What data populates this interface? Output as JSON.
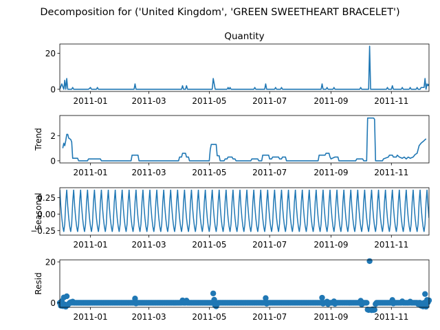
{
  "figure": {
    "suptitle": "Decomposition for ('United Kingdom', 'GREEN SWEETHEART BRACELET')"
  },
  "colors": {
    "line": "#1f77b4",
    "axis": "#000000",
    "background": "#ffffff"
  },
  "chart_data": [
    {
      "type": "line",
      "title": "Quantity",
      "ylabel": "",
      "ylim": [
        -1.2,
        25.2
      ],
      "yticks": [
        0,
        20
      ],
      "xlim": [
        "2010-12-01",
        "2011-12-09"
      ],
      "xticks": [
        "2011-01",
        "2011-03",
        "2011-05",
        "2011-07",
        "2011-09",
        "2011-11"
      ],
      "grid": false,
      "points": [
        [
          "2010-12-01",
          0
        ],
        [
          "2010-12-03",
          3
        ],
        [
          "2010-12-05",
          0
        ],
        [
          "2010-12-06",
          5
        ],
        [
          "2010-12-07",
          0
        ],
        [
          "2010-12-08",
          6
        ],
        [
          "2010-12-09",
          0
        ],
        [
          "2010-12-13",
          0
        ],
        [
          "2010-12-14",
          1
        ],
        [
          "2010-12-15",
          0
        ],
        [
          "2010-12-30",
          0
        ],
        [
          "2011-01-01",
          1
        ],
        [
          "2011-01-02",
          0
        ],
        [
          "2011-01-07",
          0
        ],
        [
          "2011-01-08",
          1
        ],
        [
          "2011-01-09",
          0
        ],
        [
          "2011-02-14",
          0
        ],
        [
          "2011-02-15",
          3
        ],
        [
          "2011-02-16",
          0
        ],
        [
          "2011-04-03",
          0
        ],
        [
          "2011-04-04",
          2
        ],
        [
          "2011-04-05",
          0
        ],
        [
          "2011-04-07",
          0
        ],
        [
          "2011-04-08",
          2
        ],
        [
          "2011-04-09",
          0
        ],
        [
          "2011-05-04",
          0
        ],
        [
          "2011-05-05",
          6
        ],
        [
          "2011-05-06",
          3
        ],
        [
          "2011-05-07",
          0
        ],
        [
          "2011-05-08",
          0
        ],
        [
          "2011-05-19",
          0
        ],
        [
          "2011-05-20",
          1
        ],
        [
          "2011-05-21",
          0
        ],
        [
          "2011-05-22",
          1
        ],
        [
          "2011-05-23",
          0
        ],
        [
          "2011-06-15",
          0
        ],
        [
          "2011-06-16",
          1
        ],
        [
          "2011-06-17",
          0
        ],
        [
          "2011-06-26",
          0
        ],
        [
          "2011-06-27",
          3
        ],
        [
          "2011-06-28",
          0
        ],
        [
          "2011-07-06",
          0
        ],
        [
          "2011-07-07",
          1
        ],
        [
          "2011-07-08",
          0
        ],
        [
          "2011-07-12",
          0
        ],
        [
          "2011-07-13",
          1
        ],
        [
          "2011-07-14",
          0
        ],
        [
          "2011-08-22",
          0
        ],
        [
          "2011-08-23",
          3
        ],
        [
          "2011-08-24",
          0
        ],
        [
          "2011-08-27",
          0
        ],
        [
          "2011-08-28",
          1
        ],
        [
          "2011-08-29",
          0
        ],
        [
          "2011-09-03",
          0
        ],
        [
          "2011-09-04",
          1
        ],
        [
          "2011-09-05",
          0
        ],
        [
          "2011-09-30",
          0
        ],
        [
          "2011-10-01",
          1
        ],
        [
          "2011-10-02",
          0
        ],
        [
          "2011-10-09",
          0
        ],
        [
          "2011-10-10",
          24
        ],
        [
          "2011-10-11",
          0
        ],
        [
          "2011-10-27",
          0
        ],
        [
          "2011-10-28",
          1
        ],
        [
          "2011-10-29",
          0
        ],
        [
          "2011-11-01",
          0
        ],
        [
          "2011-11-02",
          2
        ],
        [
          "2011-11-03",
          0
        ],
        [
          "2011-11-11",
          0
        ],
        [
          "2011-11-12",
          1
        ],
        [
          "2011-11-13",
          0
        ],
        [
          "2011-11-19",
          0
        ],
        [
          "2011-11-20",
          1
        ],
        [
          "2011-11-21",
          0
        ],
        [
          "2011-11-26",
          0
        ],
        [
          "2011-11-27",
          1
        ],
        [
          "2011-11-28",
          0
        ],
        [
          "2011-11-30",
          0
        ],
        [
          "2011-12-01",
          1
        ],
        [
          "2011-12-04",
          1
        ],
        [
          "2011-12-05",
          6
        ],
        [
          "2011-12-06",
          0
        ],
        [
          "2011-12-07",
          3
        ],
        [
          "2011-12-08",
          2
        ],
        [
          "2011-12-09",
          3
        ]
      ]
    },
    {
      "type": "line",
      "title": "",
      "ylabel": "Trend",
      "ylim": [
        -0.17,
        3.6
      ],
      "yticks": [
        0,
        2
      ],
      "xlim": [
        "2010-12-01",
        "2011-12-09"
      ],
      "xticks": [
        "2011-01",
        "2011-03",
        "2011-05",
        "2011-07",
        "2011-09",
        "2011-11"
      ],
      "grid": false,
      "points": [
        [
          "2010-12-04",
          1.0
        ],
        [
          "2010-12-05",
          1.4
        ],
        [
          "2010-12-06",
          1.2
        ],
        [
          "2010-12-07",
          1.6
        ],
        [
          "2010-12-08",
          2.1
        ],
        [
          "2010-12-09",
          2.1
        ],
        [
          "2010-12-10",
          1.8
        ],
        [
          "2010-12-12",
          1.7
        ],
        [
          "2010-12-13",
          1.5
        ],
        [
          "2010-12-14",
          0.2
        ],
        [
          "2010-12-15",
          0.2
        ],
        [
          "2010-12-19",
          0.2
        ],
        [
          "2010-12-20",
          0.0
        ],
        [
          "2010-12-29",
          0.0
        ],
        [
          "2010-12-30",
          0.15
        ],
        [
          "2011-01-11",
          0.15
        ],
        [
          "2011-01-12",
          0.0
        ],
        [
          "2011-02-11",
          0.0
        ],
        [
          "2011-02-12",
          0.45
        ],
        [
          "2011-02-18",
          0.45
        ],
        [
          "2011-02-19",
          0.0
        ],
        [
          "2011-03-31",
          0.0
        ],
        [
          "2011-04-01",
          0.3
        ],
        [
          "2011-04-03",
          0.3
        ],
        [
          "2011-04-04",
          0.6
        ],
        [
          "2011-04-07",
          0.6
        ],
        [
          "2011-04-08",
          0.3
        ],
        [
          "2011-04-10",
          0.3
        ],
        [
          "2011-04-11",
          0.0
        ],
        [
          "2011-05-01",
          0.0
        ],
        [
          "2011-05-02",
          0.9
        ],
        [
          "2011-05-03",
          1.3
        ],
        [
          "2011-05-08",
          1.3
        ],
        [
          "2011-05-09",
          0.4
        ],
        [
          "2011-05-11",
          0.4
        ],
        [
          "2011-05-12",
          0.0
        ],
        [
          "2011-05-16",
          0.0
        ],
        [
          "2011-05-17",
          0.15
        ],
        [
          "2011-05-19",
          0.15
        ],
        [
          "2011-05-20",
          0.3
        ],
        [
          "2011-05-24",
          0.3
        ],
        [
          "2011-05-25",
          0.15
        ],
        [
          "2011-05-27",
          0.15
        ],
        [
          "2011-05-28",
          0.0
        ],
        [
          "2011-06-12",
          0.0
        ],
        [
          "2011-06-13",
          0.15
        ],
        [
          "2011-06-19",
          0.15
        ],
        [
          "2011-06-20",
          0.0
        ],
        [
          "2011-06-23",
          0.0
        ],
        [
          "2011-06-24",
          0.45
        ],
        [
          "2011-06-30",
          0.45
        ],
        [
          "2011-07-01",
          0.15
        ],
        [
          "2011-07-03",
          0.15
        ],
        [
          "2011-07-04",
          0.3
        ],
        [
          "2011-07-10",
          0.3
        ],
        [
          "2011-07-11",
          0.15
        ],
        [
          "2011-07-13",
          0.15
        ],
        [
          "2011-07-14",
          0.3
        ],
        [
          "2011-07-17",
          0.3
        ],
        [
          "2011-07-18",
          0.0
        ],
        [
          "2011-08-19",
          0.0
        ],
        [
          "2011-08-20",
          0.45
        ],
        [
          "2011-08-26",
          0.45
        ],
        [
          "2011-08-27",
          0.6
        ],
        [
          "2011-08-30",
          0.6
        ],
        [
          "2011-08-31",
          0.3
        ],
        [
          "2011-09-01",
          0.15
        ],
        [
          "2011-09-05",
          0.3
        ],
        [
          "2011-09-08",
          0.3
        ],
        [
          "2011-09-09",
          0.0
        ],
        [
          "2011-09-26",
          0.0
        ],
        [
          "2011-09-27",
          0.15
        ],
        [
          "2011-10-03",
          0.15
        ],
        [
          "2011-10-04",
          0.0
        ],
        [
          "2011-10-07",
          0.0
        ],
        [
          "2011-10-08",
          3.4
        ],
        [
          "2011-10-14",
          3.4
        ],
        [
          "2011-10-15",
          3.3
        ],
        [
          "2011-10-16",
          0.0
        ],
        [
          "2011-10-23",
          0.0
        ],
        [
          "2011-10-24",
          0.15
        ],
        [
          "2011-10-29",
          0.3
        ],
        [
          "2011-10-30",
          0.45
        ],
        [
          "2011-11-02",
          0.45
        ],
        [
          "2011-11-03",
          0.3
        ],
        [
          "2011-11-06",
          0.3
        ],
        [
          "2011-11-07",
          0.45
        ],
        [
          "2011-11-09",
          0.3
        ],
        [
          "2011-11-12",
          0.2
        ],
        [
          "2011-11-14",
          0.3
        ],
        [
          "2011-11-16",
          0.15
        ],
        [
          "2011-11-18",
          0.3
        ],
        [
          "2011-11-20",
          0.2
        ],
        [
          "2011-11-23",
          0.3
        ],
        [
          "2011-11-25",
          0.5
        ],
        [
          "2011-11-27",
          0.6
        ],
        [
          "2011-11-29",
          1.2
        ],
        [
          "2011-12-01",
          1.4
        ],
        [
          "2011-12-04",
          1.6
        ],
        [
          "2011-12-06",
          1.75
        ]
      ]
    },
    {
      "type": "line",
      "title": "",
      "ylabel": "Seasonal",
      "ylim": [
        -0.32,
        0.4
      ],
      "yticks": [
        0.25,
        0.0,
        -0.25
      ],
      "ytick_labels": [
        "0.25",
        "0.00",
        "−0.25"
      ],
      "xlim": [
        "2010-12-01",
        "2011-12-09"
      ],
      "xticks": [
        "2011-01",
        "2011-03",
        "2011-05",
        "2011-07",
        "2011-09",
        "2011-11"
      ],
      "grid": false,
      "period_days": 7,
      "pattern": [
        0.37,
        0.12,
        -0.06,
        -0.19,
        -0.27,
        -0.15,
        0.18
      ]
    },
    {
      "type": "scatter",
      "title": "",
      "ylabel": "Resid",
      "ylim": [
        -2.2,
        21.0
      ],
      "yticks": [
        0,
        20
      ],
      "xlim": [
        "2010-12-01",
        "2011-12-09"
      ],
      "xticks": [
        "2011-01",
        "2011-03",
        "2011-05",
        "2011-07",
        "2011-09",
        "2011-11"
      ],
      "grid": false,
      "baseline": 0,
      "baseline_points": [
        [
          "2010-12-02",
          -1.4
        ],
        [
          "2010-12-03",
          0.8
        ],
        [
          "2010-12-04",
          -1.6
        ],
        [
          "2010-12-05",
          2.6
        ],
        [
          "2010-12-06",
          -0.8
        ],
        [
          "2010-12-07",
          -1.9
        ],
        [
          "2010-12-08",
          3.2
        ],
        [
          "2010-12-09",
          -1.1
        ],
        [
          "2010-12-10",
          -0.5
        ],
        [
          "2010-12-12",
          0.3
        ],
        [
          "2010-12-14",
          0.6
        ],
        [
          "2011-02-15",
          2.1
        ],
        [
          "2011-02-16",
          -0.3
        ],
        [
          "2011-04-04",
          1.2
        ],
        [
          "2011-04-08",
          1.1
        ],
        [
          "2011-05-05",
          4.6
        ],
        [
          "2011-05-06",
          1.5
        ],
        [
          "2011-05-07",
          -1.3
        ],
        [
          "2011-05-08",
          -1.7
        ],
        [
          "2011-05-09",
          -0.6
        ],
        [
          "2011-06-27",
          2.3
        ],
        [
          "2011-06-28",
          -0.4
        ],
        [
          "2011-08-23",
          2.5
        ],
        [
          "2011-08-24",
          -0.4
        ],
        [
          "2011-08-28",
          0.6
        ],
        [
          "2011-08-29",
          -0.6
        ],
        [
          "2011-09-04",
          0.7
        ],
        [
          "2011-09-05",
          -0.5
        ],
        [
          "2011-10-01",
          1.0
        ],
        [
          "2011-10-02",
          -0.8
        ],
        [
          "2011-10-08",
          -3.3
        ],
        [
          "2011-10-09",
          -3.5
        ],
        [
          "2011-10-10",
          20.4
        ],
        [
          "2011-10-11",
          -3.4
        ],
        [
          "2011-10-12",
          -3.6
        ],
        [
          "2011-10-13",
          -3.2
        ],
        [
          "2011-10-14",
          -3.5
        ],
        [
          "2011-10-15",
          -3.4
        ],
        [
          "2011-10-16",
          -0.6
        ],
        [
          "2011-11-02",
          1.4
        ],
        [
          "2011-11-03",
          -0.3
        ],
        [
          "2011-11-12",
          0.7
        ],
        [
          "2011-11-20",
          0.6
        ],
        [
          "2011-11-28",
          -0.6
        ],
        [
          "2011-12-01",
          -1.4
        ],
        [
          "2011-12-02",
          -1.0
        ],
        [
          "2011-12-03",
          -1.8
        ],
        [
          "2011-12-05",
          4.3
        ],
        [
          "2011-12-06",
          -1.9
        ],
        [
          "2011-12-07",
          1.4
        ],
        [
          "2011-12-08",
          0.3
        ],
        [
          "2011-12-09",
          1.2
        ]
      ]
    }
  ]
}
